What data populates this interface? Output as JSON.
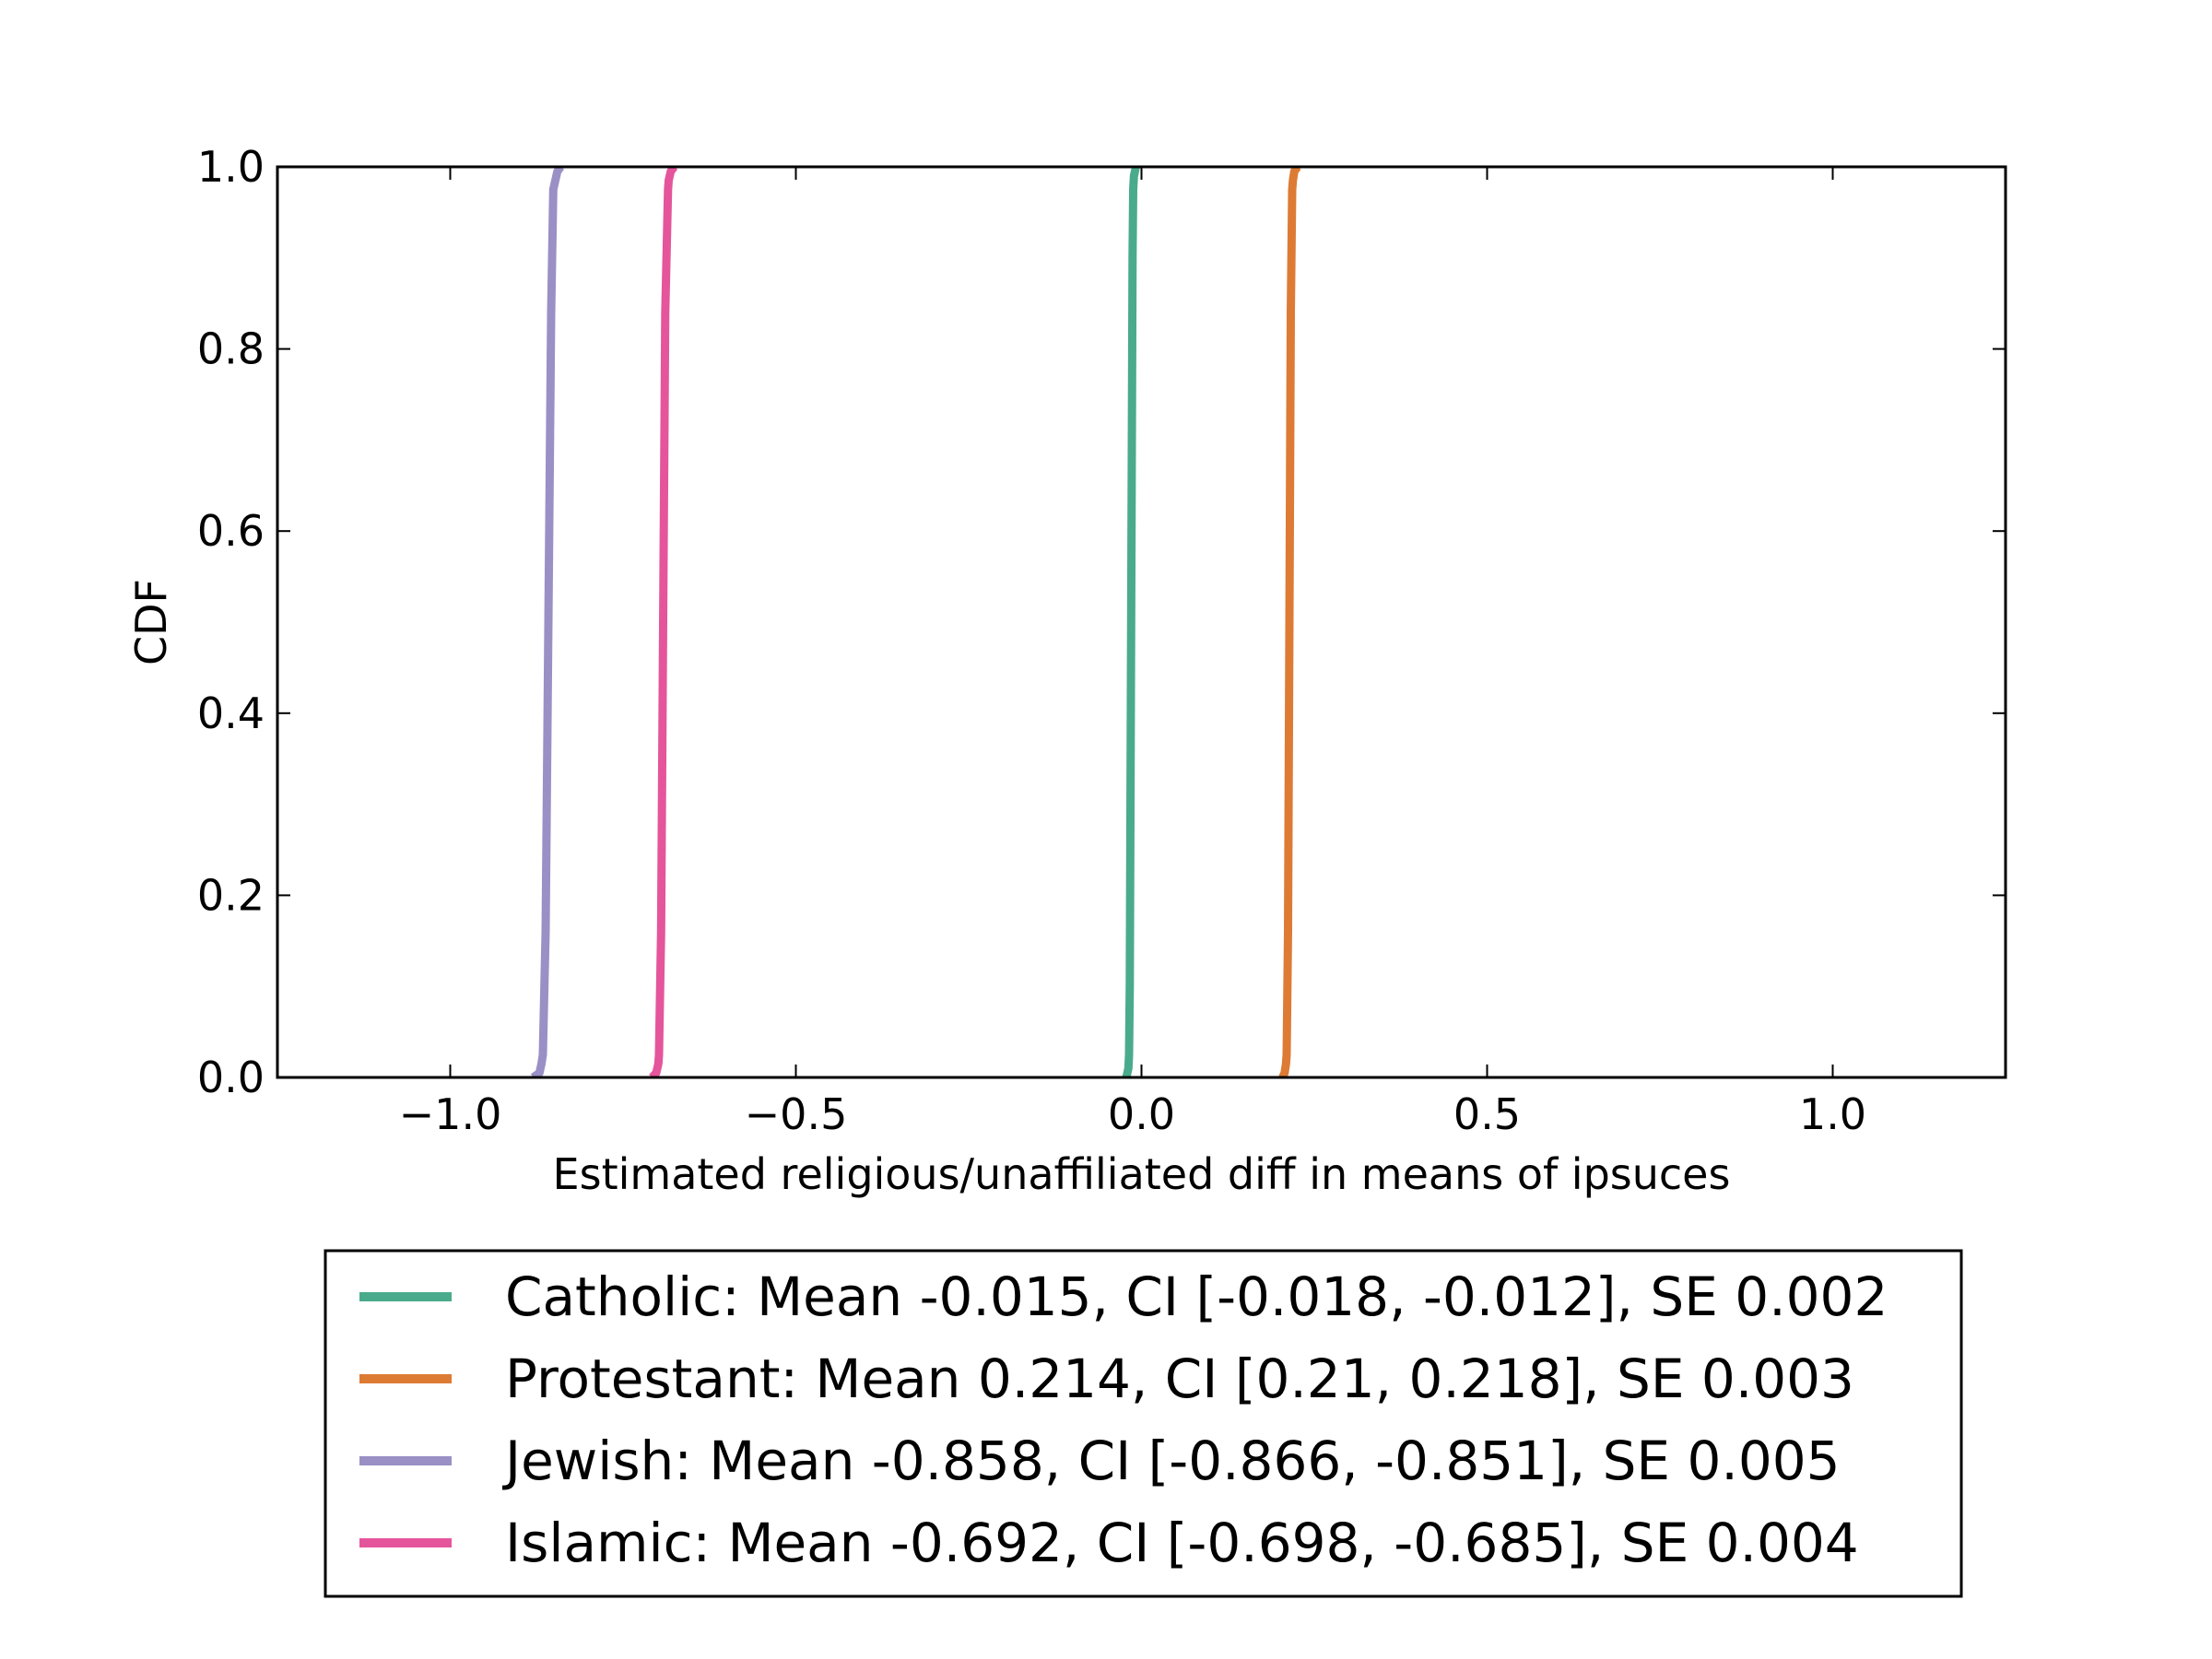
{
  "chart_data": {
    "type": "line",
    "title": "",
    "xlabel": "Estimated religious/unaffiliated diff in means of ipsuces",
    "ylabel": "CDF",
    "xlim": [
      -1.25,
      1.25
    ],
    "ylim": [
      0.0,
      1.0
    ],
    "x_ticks": [
      -1.0,
      -0.5,
      0.0,
      0.5,
      1.0
    ],
    "x_tick_labels": [
      "−1.0",
      "−0.5",
      "0.0",
      "0.5",
      "1.0"
    ],
    "y_ticks": [
      0.0,
      0.2,
      0.4,
      0.6,
      0.8,
      1.0
    ],
    "y_tick_labels": [
      "0.0",
      "0.2",
      "0.4",
      "0.6",
      "0.8",
      "1.0"
    ],
    "grid": false,
    "legend_position": "below-center",
    "series": [
      {
        "name": "Catholic",
        "label": "Catholic: Mean -0.015, CI [-0.018, -0.012], SE 0.002",
        "color": "#4aab8c",
        "x": [
          -0.022,
          -0.019,
          -0.018,
          -0.017,
          -0.015,
          -0.013,
          -0.012,
          -0.011,
          -0.008
        ],
        "y": [
          0.0,
          0.01,
          0.025,
          0.1,
          0.5,
          0.9,
          0.975,
          0.99,
          1.0
        ]
      },
      {
        "name": "Protestant",
        "label": "Protestant: Mean 0.214, CI [0.21, 0.218], SE 0.003",
        "color": "#dd7b35",
        "x": [
          0.204,
          0.207,
          0.209,
          0.21,
          0.212,
          0.214,
          0.216,
          0.218,
          0.219,
          0.221,
          0.226
        ],
        "y": [
          0.0,
          0.005,
          0.015,
          0.025,
          0.16,
          0.5,
          0.84,
          0.975,
          0.985,
          0.995,
          1.0
        ]
      },
      {
        "name": "Jewish",
        "label": "Jewish: Mean -0.858, CI [-0.866, -0.851], SE 0.005",
        "color": "#9a90c5",
        "x": [
          -0.88,
          -0.871,
          -0.868,
          -0.866,
          -0.862,
          -0.858,
          -0.854,
          -0.851,
          -0.848,
          -0.845,
          -0.84
        ],
        "y": [
          0.0,
          0.005,
          0.015,
          0.025,
          0.16,
          0.5,
          0.84,
          0.975,
          0.985,
          0.995,
          1.0
        ]
      },
      {
        "name": "Islamic",
        "label": "Islamic: Mean -0.692, CI [-0.698, -0.685], SE 0.004",
        "color": "#e5559c",
        "x": [
          -0.708,
          -0.702,
          -0.699,
          -0.698,
          -0.695,
          -0.692,
          -0.689,
          -0.685,
          -0.684,
          -0.681,
          -0.676
        ],
        "y": [
          0.0,
          0.005,
          0.015,
          0.025,
          0.16,
          0.5,
          0.84,
          0.975,
          0.985,
          0.995,
          1.0
        ]
      }
    ]
  }
}
